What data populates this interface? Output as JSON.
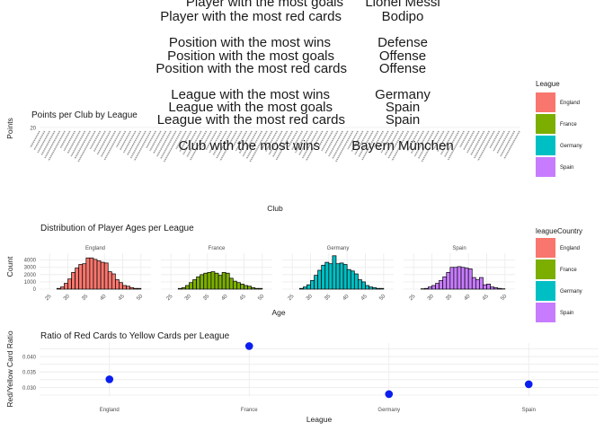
{
  "stats": {
    "player_goals_label": "Player with the most goals",
    "player_goals_value": "Lionel Messi",
    "player_red_label": "Player with the most red cards",
    "player_red_value": "Bodipo",
    "pos_wins_label": "Position with the most wins",
    "pos_wins_value": "Defense",
    "pos_goals_label": "Position with the most goals",
    "pos_goals_value": "Offense",
    "pos_red_label": "Position with the most red cards",
    "pos_red_value": "Offense",
    "league_wins_label": "League with the most wins",
    "league_wins_value": "Germany",
    "league_goals_label": "League with the most goals",
    "league_goals_value": "Spain",
    "league_red_label": "League with the most red cards",
    "league_red_value": "Spain",
    "club_wins_label": "Club with the most wins",
    "club_wins_value": "Bayern München"
  },
  "colors": {
    "England": "#F8766D",
    "France": "#7CAE00",
    "Germany": "#00BFC4",
    "Spain": "#C77CFF"
  },
  "chart_data": [
    {
      "type": "bar",
      "title": "Points per Club by League",
      "xlabel": "Club",
      "ylabel": "Points",
      "y_ticks": [
        "20"
      ],
      "legend": {
        "title": "League",
        "entries": [
          "England",
          "France",
          "Germany",
          "Spain"
        ],
        "position": "right"
      },
      "club_label_count": 96
    },
    {
      "type": "bar",
      "title": "Distribution of Player Ages per League",
      "xlabel": "Age",
      "ylabel": "Count",
      "y_ticks": [
        0,
        1000,
        2000,
        3000,
        4000
      ],
      "x_ticks": [
        25,
        30,
        35,
        40,
        45,
        50
      ],
      "ylim": [
        0,
        4700
      ],
      "legend": {
        "title": "leagueCountry",
        "entries": [
          "England",
          "France",
          "Germany",
          "Spain"
        ],
        "position": "right"
      },
      "facets": [
        {
          "name": "England",
          "values": [
            100,
            300,
            800,
            1400,
            2300,
            2900,
            3400,
            3500,
            4300,
            4300,
            4100,
            3900,
            3700,
            3600,
            2400,
            2100,
            1300,
            900,
            500,
            400,
            200,
            100,
            100
          ]
        },
        {
          "name": "France",
          "values": [
            100,
            200,
            500,
            900,
            1300,
            1700,
            2000,
            2200,
            2300,
            2400,
            2200,
            1900,
            2300,
            2200,
            1500,
            1100,
            900,
            700,
            500,
            400,
            200,
            100,
            100
          ]
        },
        {
          "name": "Germany",
          "values": [
            100,
            300,
            600,
            1200,
            1900,
            2600,
            3300,
            3700,
            3500,
            4600,
            3500,
            3600,
            3400,
            2700,
            2500,
            2100,
            1300,
            1000,
            500,
            300,
            200,
            100,
            100
          ]
        },
        {
          "name": "Spain",
          "values": [
            50,
            100,
            300,
            500,
            800,
            1200,
            1700,
            2300,
            3000,
            3000,
            3100,
            3000,
            2900,
            2800,
            1600,
            1300,
            1600,
            600,
            700,
            300,
            200,
            100,
            50
          ]
        }
      ]
    },
    {
      "type": "scatter",
      "title": "Ratio of Red Cards to Yellow Cards per League",
      "xlabel": "League",
      "ylabel": "Red/Yellow Card Ratio",
      "categories": [
        "England",
        "France",
        "Germany",
        "Spain"
      ],
      "values": [
        0.0326,
        0.0434,
        0.0278,
        0.031
      ],
      "y_ticks": [
        0.03,
        0.035,
        0.04
      ],
      "ylim": [
        0.0272,
        0.0444
      ]
    }
  ]
}
